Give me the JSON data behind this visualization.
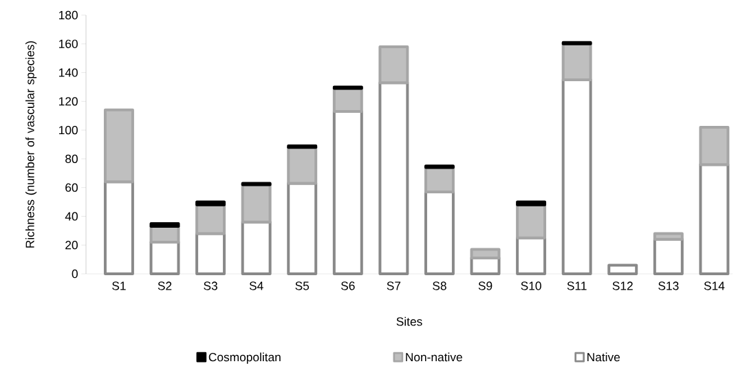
{
  "chart_data": {
    "type": "bar",
    "stacked": true,
    "xlabel": "Sites",
    "ylabel": "Richness (number of vascular species)",
    "categories": [
      "S1",
      "S2",
      "S3",
      "S4",
      "S5",
      "S6",
      "S7",
      "S8",
      "S9",
      "S10",
      "S11",
      "S12",
      "S13",
      "S14"
    ],
    "series": [
      {
        "name": "Native",
        "color": "#ffffff",
        "values": [
          64,
          22,
          28,
          36,
          63,
          113,
          133,
          57,
          11,
          25,
          135,
          6,
          24,
          76
        ]
      },
      {
        "name": "Non-native",
        "color": "#bfbfbf",
        "values": [
          50,
          11,
          20,
          26,
          25,
          16,
          25,
          17,
          6,
          23,
          25,
          0,
          4,
          26
        ]
      },
      {
        "name": "Cosmopolitan",
        "color": "#000000",
        "values": [
          0,
          2,
          2,
          1,
          1,
          1,
          0,
          1,
          0,
          2,
          1,
          0,
          0,
          0
        ]
      }
    ],
    "ylim": [
      0,
      180
    ],
    "yticks": [
      0,
      20,
      40,
      60,
      80,
      100,
      120,
      140,
      160,
      180
    ],
    "grid": false,
    "legend": "bottom"
  }
}
